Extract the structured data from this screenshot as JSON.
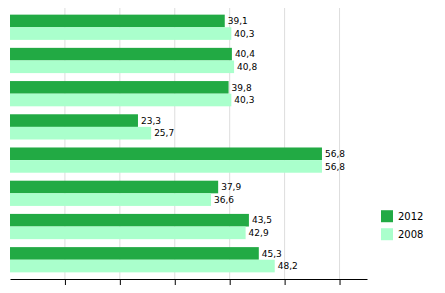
{
  "chart_data": {
    "type": "bar",
    "orientation": "horizontal",
    "categories": [
      null,
      null,
      null,
      null,
      null,
      null,
      null,
      null
    ],
    "series": [
      {
        "name": "2012",
        "color": "#22aa44",
        "values": [
          45.3,
          43.5,
          37.9,
          56.8,
          23.3,
          39.8,
          40.4,
          39.1
        ],
        "value_labels": [
          "45,3",
          "43,5",
          "37,9",
          "56,8",
          "23,3",
          "39,8",
          "40,4",
          "39,1"
        ]
      },
      {
        "name": "2008",
        "color": "#aaffcc",
        "values": [
          48.2,
          42.9,
          36.6,
          56.8,
          25.7,
          40.3,
          40.8,
          40.3
        ],
        "value_labels": [
          "48,2",
          "42,9",
          "36,6",
          "56,8",
          "25,7",
          "40,3",
          "40,8",
          "40,3"
        ]
      }
    ],
    "xlim": [
      0,
      65
    ],
    "xticks": [
      10,
      20,
      30,
      40,
      50,
      60
    ],
    "grid": true,
    "data_labels": true,
    "tick_labels": false,
    "legend": "right"
  }
}
